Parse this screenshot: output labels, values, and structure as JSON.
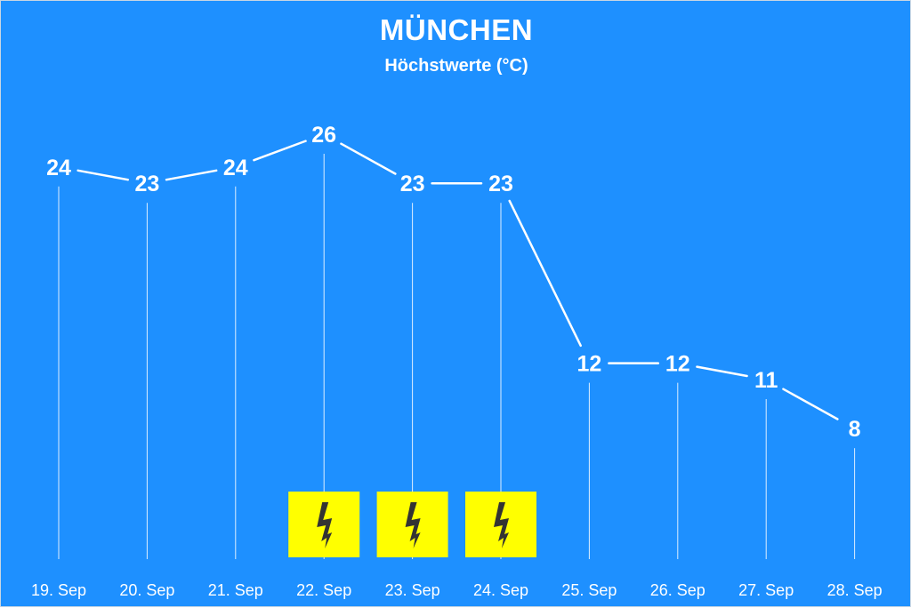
{
  "title": "MÜNCHEN",
  "subtitle": "Höchstwerte (°C)",
  "colors": {
    "background": "#1e90ff",
    "line": "#ffffff",
    "thunder_icon_bg": "#ffff00",
    "thunder_icon_bolt": "#333333"
  },
  "chart_data": {
    "type": "line",
    "categories": [
      "19. Sep",
      "20. Sep",
      "21. Sep",
      "22. Sep",
      "23. Sep",
      "24. Sep",
      "25. Sep",
      "26. Sep",
      "27. Sep",
      "28. Sep"
    ],
    "series": [
      {
        "values": [
          24,
          23,
          24,
          26,
          23,
          23,
          12,
          12,
          11,
          8
        ]
      }
    ],
    "data_labels": true,
    "grid": false,
    "weather_icons": [
      "",
      "",
      "",
      "thunderstorm",
      "thunderstorm",
      "thunderstorm",
      "",
      "",
      "",
      ""
    ]
  }
}
